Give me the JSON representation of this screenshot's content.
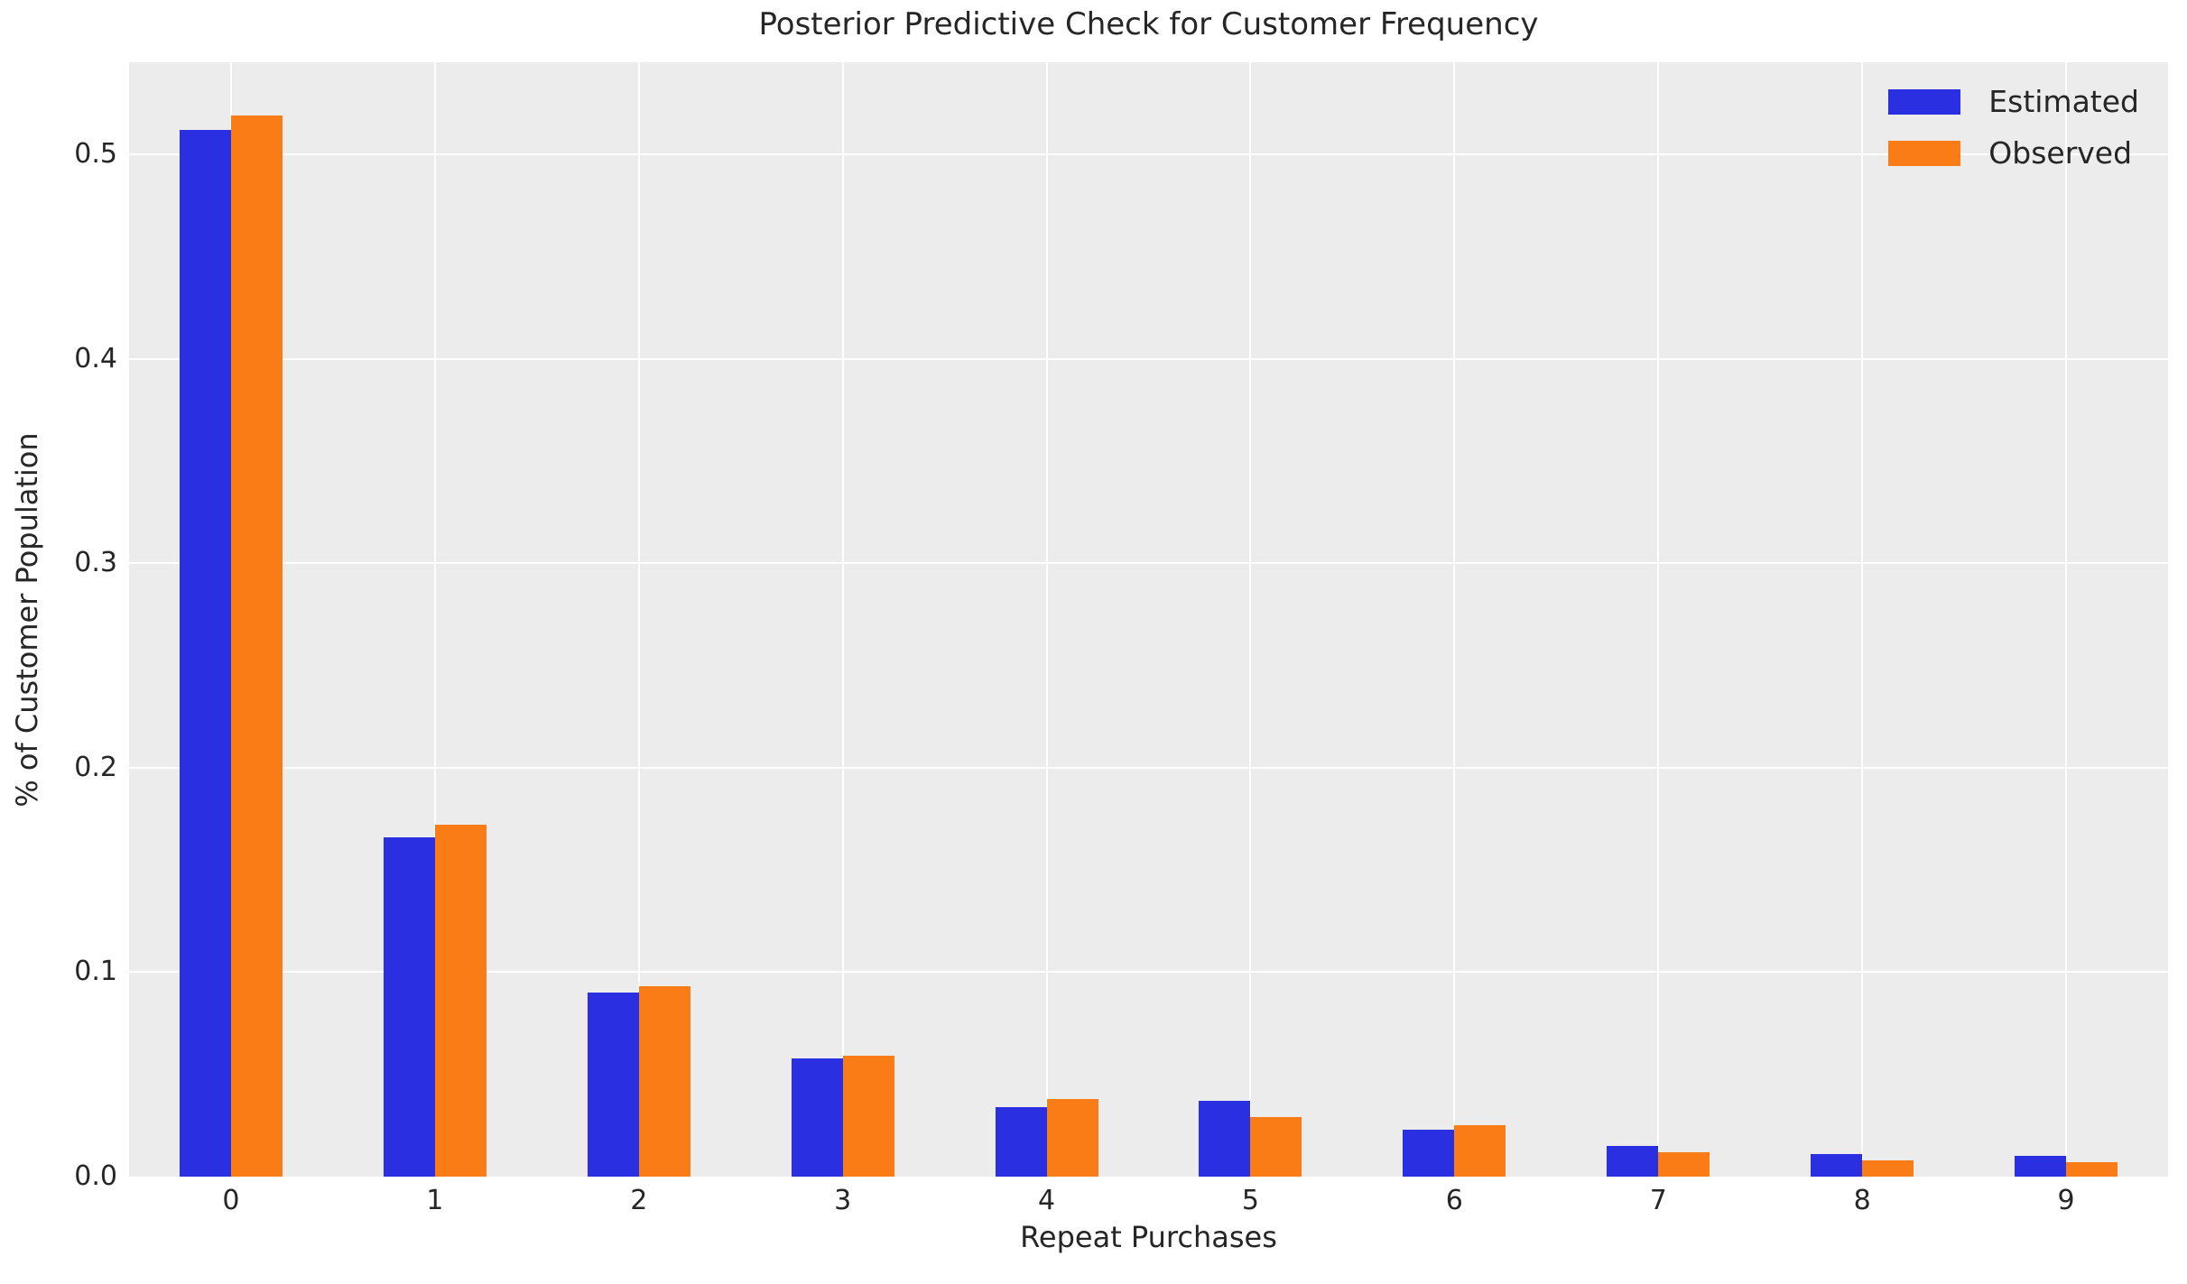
{
  "figure": {
    "title": "Posterior Predictive Check for Customer Frequency",
    "xlabel": "Repeat Purchases",
    "ylabel": "% of Customer Population"
  },
  "legend": {
    "items": [
      {
        "label": "Estimated",
        "color": "#2B2FE2"
      },
      {
        "label": "Observed",
        "color": "#F97C16"
      }
    ]
  },
  "chart_data": {
    "type": "bar",
    "title": "Posterior Predictive Check for Customer Frequency",
    "xlabel": "Repeat Purchases",
    "ylabel": "% of Customer Population",
    "categories": [
      "0",
      "1",
      "2",
      "3",
      "4",
      "5",
      "6",
      "7",
      "8",
      "9"
    ],
    "series": [
      {
        "name": "Estimated",
        "color": "#2B2FE2",
        "values": [
          0.512,
          0.166,
          0.09,
          0.058,
          0.034,
          0.037,
          0.023,
          0.015,
          0.011,
          0.01
        ]
      },
      {
        "name": "Observed",
        "color": "#F97C16",
        "values": [
          0.519,
          0.172,
          0.093,
          0.059,
          0.038,
          0.029,
          0.025,
          0.012,
          0.008,
          0.007
        ]
      }
    ],
    "ylim": [
      0,
      0.545
    ],
    "yticks": [
      0.0,
      0.1,
      0.2,
      0.3,
      0.4,
      0.5
    ],
    "ytick_labels": [
      "0.0",
      "0.1",
      "0.2",
      "0.3",
      "0.4",
      "0.5"
    ],
    "grid": true,
    "grid_color": "#FFFFFF",
    "plot_background": "#ECECEC",
    "legend_position": "upper right"
  }
}
